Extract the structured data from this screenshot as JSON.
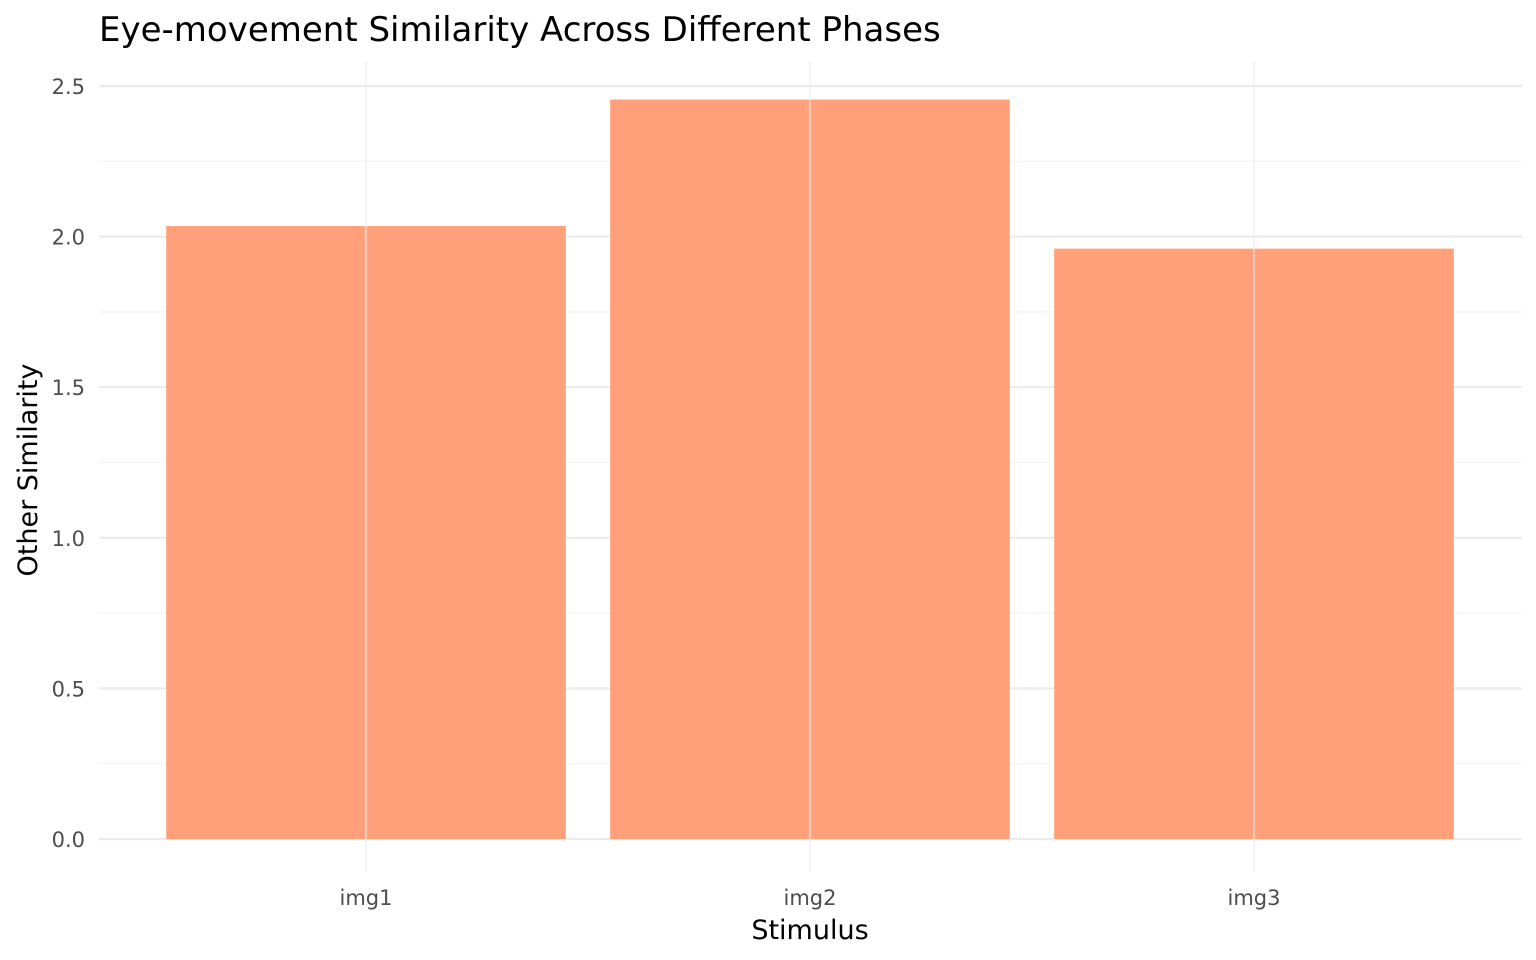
{
  "chart_data": {
    "type": "bar",
    "title": "Eye-movement Similarity Across Different Phases",
    "xlabel": "Stimulus",
    "ylabel": "Other Similarity",
    "categories": [
      "img1",
      "img2",
      "img3"
    ],
    "values": [
      2.035,
      2.455,
      1.96
    ],
    "ylim": [
      0,
      2.5
    ],
    "yticks": [
      "0.0",
      "0.5",
      "1.0",
      "1.5",
      "2.0",
      "2.5"
    ],
    "bar_color": "#FFA07A",
    "grid": true,
    "legend": "none"
  }
}
